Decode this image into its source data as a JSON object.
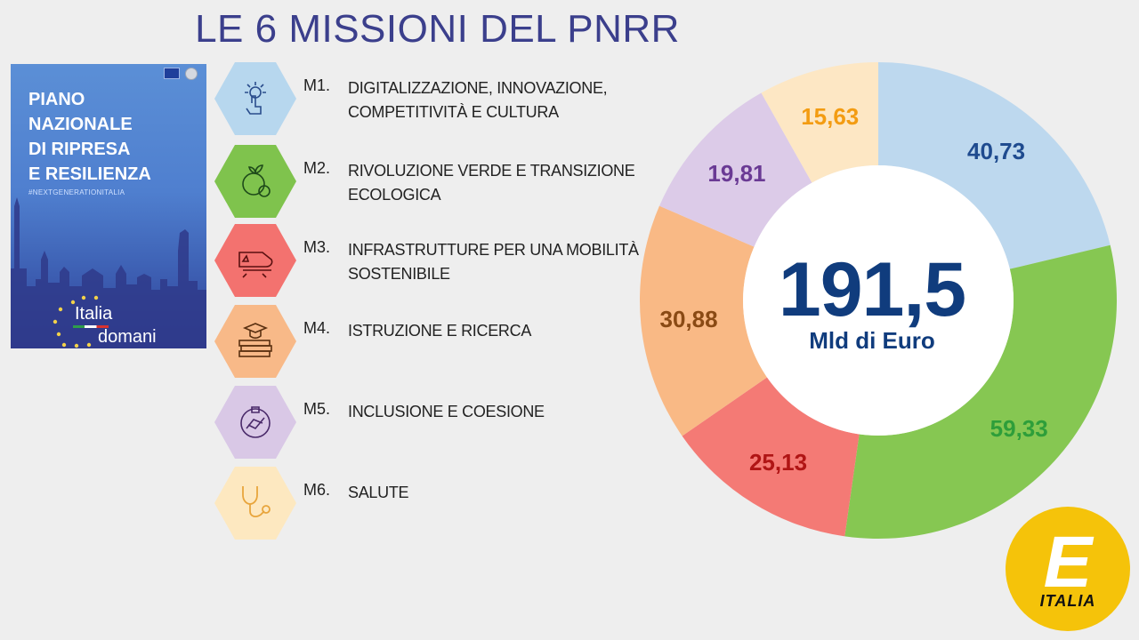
{
  "title": "LE 6 MISSIONI DEL PNRR",
  "cover": {
    "title": "PIANO\nNAZIONALE\nDI RIPRESA\nE RESILIENZA",
    "hashtag": "#NEXTGENERATIONITALIA",
    "logo_line1": "Italia",
    "logo_line2": "domani"
  },
  "missions": [
    {
      "code": "M1.",
      "label": "DIGITALIZZAZIONE, INNOVAZIONE, COMPETITIVITÀ E CULTURA",
      "icon": "digital-hand-icon",
      "color": "#b7d7ee"
    },
    {
      "code": "M2.",
      "label": "RIVOLUZIONE VERDE E TRANSIZIONE ECOLOGICA",
      "icon": "green-globe-icon",
      "color": "#7fc34d"
    },
    {
      "code": "M3.",
      "label": "INFRASTRUTTURE PER UNA MOBILITÀ SOSTENIBILE",
      "icon": "train-icon",
      "color": "#f3726f"
    },
    {
      "code": "M4.",
      "label": "ISTRUZIONE E RICERCA",
      "icon": "books-graduation-icon",
      "color": "#f8b988"
    },
    {
      "code": "M5.",
      "label": "INCLUSIONE E COESIONE",
      "icon": "joined-hands-icon",
      "color": "#d9c8e6"
    },
    {
      "code": "M6.",
      "label": "SALUTE",
      "icon": "stethoscope-icon",
      "color": "#fde8c0"
    }
  ],
  "chart_data": {
    "type": "pie",
    "title": "",
    "center_value": "191,5",
    "center_unit": "Mld di Euro",
    "slices": [
      {
        "label": "40,73",
        "value": 40.73,
        "color": "#bdd8ee",
        "text_color": "#1f4b8f"
      },
      {
        "label": "59,33",
        "value": 59.33,
        "color": "#86c752",
        "text_color": "#2e9e3a"
      },
      {
        "label": "25,13",
        "value": 25.13,
        "color": "#f47a75",
        "text_color": "#b01515"
      },
      {
        "label": "30,88",
        "value": 30.88,
        "color": "#f9b985",
        "text_color": "#8a4a14"
      },
      {
        "label": "19,81",
        "value": 19.81,
        "color": "#dccbe8",
        "text_color": "#6a3a94"
      },
      {
        "label": "15,63",
        "value": 15.63,
        "color": "#fde7c4",
        "text_color": "#f39c12"
      }
    ]
  },
  "logo": {
    "mark": "E",
    "text": "ITALIA"
  }
}
